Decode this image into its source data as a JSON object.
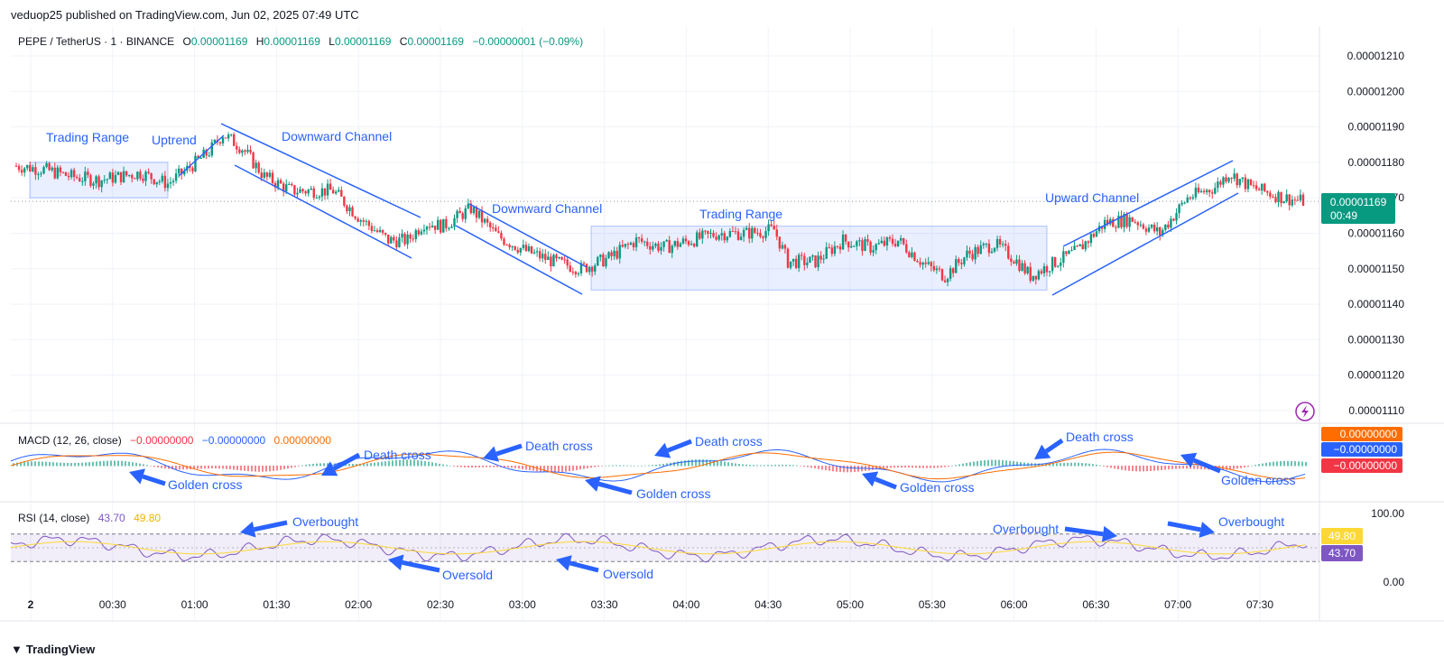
{
  "header": {
    "publisher_text": "veduop25 published on TradingView.com, Jun 02, 2025 07:49 UTC"
  },
  "symbol_legend": {
    "symbol": "PEPE / TetherUS · 1 · BINANCE",
    "o_label": "O",
    "o_value": "0.00001169",
    "h_label": "H",
    "h_value": "0.00001169",
    "l_label": "L",
    "l_value": "0.00001169",
    "c_label": "C",
    "c_value": "0.00001169",
    "change": "−0.00000001 (−0.09%)"
  },
  "macd_legend": {
    "label": "MACD (12, 26, close)",
    "hist": "−0.00000000",
    "macd": "−0.00000000",
    "signal": "0.00000000"
  },
  "rsi_legend": {
    "label": "RSI (14, close)",
    "rsi": "43.70",
    "ma": "49.80"
  },
  "price_tag": {
    "price": "0.00001169",
    "countdown": "00:49"
  },
  "macd_tags": [
    "0.00000000",
    "−0.00000000",
    "−0.00000000"
  ],
  "rsi_tags": [
    "49.80",
    "43.70"
  ],
  "footer": {
    "brand": "TradingView"
  },
  "colors": {
    "up": "#089981",
    "down": "#f23645",
    "annotation": "#2962ff",
    "macd_line": "#2962ff",
    "signal_line": "#ff6d00",
    "rsi_line": "#7e57c2",
    "rsi_ma": "#fdd835"
  },
  "chart_data": [
    {
      "type": "candlestick",
      "title": "PEPE / TetherUS · 1 · BINANCE",
      "y_ticks": [
        "0.00001210",
        "0.00001200",
        "0.00001190",
        "0.00001180",
        "0.00001170",
        "0.00001160",
        "0.00001150",
        "0.00001140",
        "0.00001130",
        "0.00001120",
        "0.00001110"
      ],
      "ylim": [
        1.108e-05,
        1.215e-05
      ],
      "x_ticks": [
        "2",
        "00:30",
        "01:00",
        "01:30",
        "02:00",
        "02:30",
        "03:00",
        "03:30",
        "04:00",
        "04:30",
        "05:00",
        "05:30",
        "06:00",
        "06:30",
        "07:00",
        "07:30"
      ],
      "close_path": [
        {
          "t": 0,
          "price": 1.179e-05
        },
        {
          "t": 10,
          "price": 1.178e-05
        },
        {
          "t": 20,
          "price": 1.176e-05
        },
        {
          "t": 30,
          "price": 1.175e-05
        },
        {
          "t": 45,
          "price": 1.177e-05
        },
        {
          "t": 55,
          "price": 1.174e-05
        },
        {
          "t": 62,
          "price": 1.178e-05
        },
        {
          "t": 70,
          "price": 1.183e-05
        },
        {
          "t": 75,
          "price": 1.188e-05
        },
        {
          "t": 82,
          "price": 1.184e-05
        },
        {
          "t": 90,
          "price": 1.176e-05
        },
        {
          "t": 100,
          "price": 1.172e-05
        },
        {
          "t": 115,
          "price": 1.172e-05
        },
        {
          "t": 125,
          "price": 1.164e-05
        },
        {
          "t": 135,
          "price": 1.158e-05
        },
        {
          "t": 142,
          "price": 1.158e-05
        },
        {
          "t": 148,
          "price": 1.163e-05
        },
        {
          "t": 155,
          "price": 1.162e-05
        },
        {
          "t": 165,
          "price": 1.167e-05
        },
        {
          "t": 175,
          "price": 1.159e-05
        },
        {
          "t": 185,
          "price": 1.155e-05
        },
        {
          "t": 195,
          "price": 1.152e-05
        },
        {
          "t": 205,
          "price": 1.15e-05
        },
        {
          "t": 215,
          "price": 1.153e-05
        },
        {
          "t": 225,
          "price": 1.158e-05
        },
        {
          "t": 235,
          "price": 1.156e-05
        },
        {
          "t": 245,
          "price": 1.158e-05
        },
        {
          "t": 255,
          "price": 1.16e-05
        },
        {
          "t": 265,
          "price": 1.16e-05
        },
        {
          "t": 275,
          "price": 1.161e-05
        },
        {
          "t": 280,
          "price": 1.152e-05
        },
        {
          "t": 290,
          "price": 1.152e-05
        },
        {
          "t": 300,
          "price": 1.158e-05
        },
        {
          "t": 310,
          "price": 1.156e-05
        },
        {
          "t": 320,
          "price": 1.158e-05
        },
        {
          "t": 330,
          "price": 1.151e-05
        },
        {
          "t": 337,
          "price": 1.148e-05
        },
        {
          "t": 345,
          "price": 1.154e-05
        },
        {
          "t": 355,
          "price": 1.157e-05
        },
        {
          "t": 362,
          "price": 1.153e-05
        },
        {
          "t": 368,
          "price": 1.148e-05
        },
        {
          "t": 375,
          "price": 1.151e-05
        },
        {
          "t": 385,
          "price": 1.155e-05
        },
        {
          "t": 395,
          "price": 1.163e-05
        },
        {
          "t": 405,
          "price": 1.164e-05
        },
        {
          "t": 415,
          "price": 1.16e-05
        },
        {
          "t": 425,
          "price": 1.17e-05
        },
        {
          "t": 435,
          "price": 1.173e-05
        },
        {
          "t": 440,
          "price": 1.177e-05
        },
        {
          "t": 448,
          "price": 1.173e-05
        },
        {
          "t": 460,
          "price": 1.17e-05
        },
        {
          "t": 467,
          "price": 1.169e-05
        }
      ]
    },
    {
      "type": "line",
      "title": "MACD (12, 26, close)",
      "series": [
        {
          "name": "MACD",
          "color": "#2962ff"
        },
        {
          "name": "Signal",
          "color": "#ff6d00"
        },
        {
          "name": "Histogram",
          "color": "#26a69a"
        }
      ]
    },
    {
      "type": "line",
      "title": "RSI (14, close)",
      "y_ticks": [
        "100.00",
        "0.00"
      ],
      "ylim": [
        0,
        100
      ],
      "bands": [
        30,
        70
      ],
      "series": [
        {
          "name": "RSI",
          "color": "#7e57c2"
        },
        {
          "name": "RSI-based MA",
          "color": "#fdd835"
        }
      ]
    }
  ],
  "annotations": {
    "trading_range_1": "Trading Range",
    "uptrend": "Uptrend",
    "downward_channel_1": "Downward Channel",
    "downward_channel_2": "Downward Channel",
    "trading_range_2": "Trading Range",
    "upward_channel": "Upward Channel",
    "macd": [
      {
        "id": "gc1",
        "text": "Golden cross"
      },
      {
        "id": "dc1",
        "text": "Death cross"
      },
      {
        "id": "dc2",
        "text": "Death cross"
      },
      {
        "id": "gc2",
        "text": "Golden cross"
      },
      {
        "id": "dc3",
        "text": "Death cross"
      },
      {
        "id": "gc3",
        "text": "Golden cross"
      },
      {
        "id": "dc4",
        "text": "Death cross"
      },
      {
        "id": "gc4",
        "text": "Golden cross"
      }
    ],
    "rsi": [
      {
        "id": "ob1",
        "text": "Overbought"
      },
      {
        "id": "os1",
        "text": "Oversold"
      },
      {
        "id": "os2",
        "text": "Oversold"
      },
      {
        "id": "ob2",
        "text": "Overbought"
      },
      {
        "id": "ob3",
        "text": "Overbought"
      }
    ]
  }
}
